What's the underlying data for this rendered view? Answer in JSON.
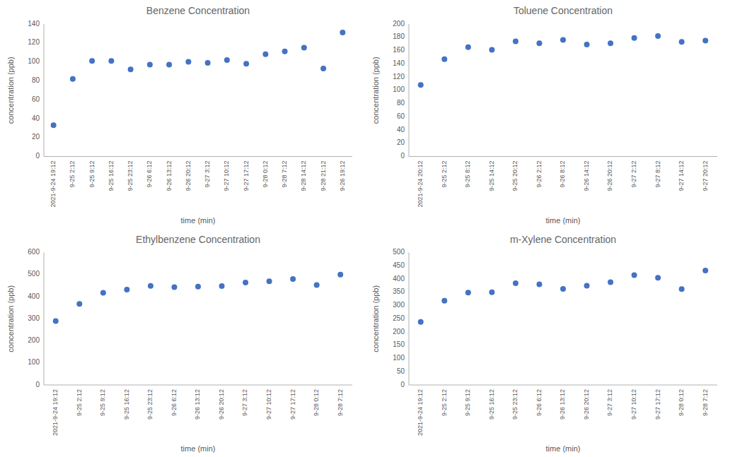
{
  "chart_data": [
    {
      "type": "scatter",
      "title": "Benzene Concentration",
      "xlabel": "time (min)",
      "ylabel": "concentration (ppb)",
      "categories": [
        "2021-9-24 19:12",
        "9-25 2:12",
        "9-25 9:12",
        "9-25 16:12",
        "9-25 23:12",
        "9-26 6:12",
        "9-26 13:12",
        "9-26 20:12",
        "9-27 3:12",
        "9-27 10:12",
        "9-27 17:12",
        "9-28 0:12",
        "9-28 7:12",
        "9-28 14:12",
        "9-28 21:12",
        "9-26 19:12"
      ],
      "values": [
        33,
        82,
        101,
        101,
        92,
        97,
        97,
        100,
        99,
        102,
        98,
        108,
        111,
        115,
        93,
        131
      ],
      "color": "#4472C4",
      "ylim": [
        0,
        140
      ],
      "yticks": [
        0,
        20,
        40,
        60,
        80,
        100,
        120,
        140
      ],
      "grid": false
    },
    {
      "type": "scatter",
      "title": "Toluene Concentration",
      "xlabel": "time (min)",
      "ylabel": "concentration (ppb)",
      "categories": [
        "2021-9-24 20:12",
        "9-25 2:12",
        "9-25 8:12",
        "9-25 14:12",
        "9-25 20:12",
        "9-26 2:12",
        "9-26 8:12",
        "9-26 14:12",
        "9-26 20:12",
        "9-27 2:12",
        "9-27 8:12",
        "9-27 14:12",
        "9-27 20:12"
      ],
      "values": [
        108,
        147,
        165,
        161,
        174,
        171,
        176,
        169,
        171,
        179,
        182,
        173,
        175
      ],
      "color": "#4472C4",
      "ylim": [
        0,
        200
      ],
      "yticks": [
        0,
        20,
        40,
        60,
        80,
        100,
        120,
        140,
        160,
        180,
        200
      ],
      "grid": false
    },
    {
      "type": "scatter",
      "title": "Ethylbenzene Concentration",
      "xlabel": "time (min)",
      "ylabel": "concentration (ppb)",
      "categories": [
        "2021-9-24 19:12",
        "9-25 2:12",
        "9-25 9:12",
        "9-25 16:12",
        "9-25 23:12",
        "9-26 6:12",
        "9-26 13:12",
        "9-26 20:12",
        "9-27 3:12",
        "9-27 10:12",
        "9-27 17:12",
        "9-28 0:12",
        "9-28 7:12"
      ],
      "values": [
        290,
        367,
        418,
        432,
        449,
        443,
        446,
        448,
        464,
        470,
        480,
        453,
        500
      ],
      "color": "#4472C4",
      "ylim": [
        0,
        600
      ],
      "yticks": [
        0,
        100,
        200,
        300,
        400,
        500,
        600
      ],
      "grid": false
    },
    {
      "type": "scatter",
      "title": "m-Xylene Concentration",
      "xlabel": "time (min)",
      "ylabel": "concentration (ppb)",
      "categories": [
        "2021-9-24 19:12",
        "9-25 2:12",
        "9-25 9:12",
        "9-25 16:12",
        "9-25 23:12",
        "9-26 6:12",
        "9-26 13:12",
        "9-26 20:12",
        "9-27 3:12",
        "9-27 10:12",
        "9-27 17:12",
        "9-28 0:12",
        "9-28 7:12"
      ],
      "values": [
        238,
        318,
        349,
        350,
        384,
        380,
        363,
        375,
        388,
        415,
        405,
        362,
        432
      ],
      "color": "#4472C4",
      "ylim": [
        0,
        500
      ],
      "yticks": [
        0,
        50,
        100,
        150,
        200,
        250,
        300,
        350,
        400,
        450,
        500
      ],
      "grid": false
    }
  ]
}
